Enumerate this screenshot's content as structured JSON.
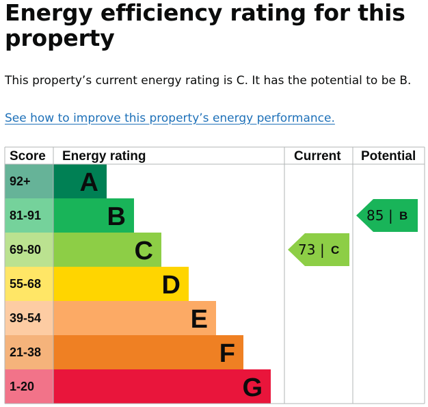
{
  "title": "Energy efficiency rating for this property",
  "summary": "This property’s current energy rating is C. It has the potential to be B.",
  "link": "See how to improve this property’s energy performance.",
  "table": {
    "headers": {
      "score": "Score",
      "rating": "Energy rating",
      "current": "Current",
      "potential": "Potential"
    },
    "bands": [
      {
        "score": "92+",
        "letter": "A",
        "color": "#008054",
        "score_bg": "#66b398"
      },
      {
        "score": "81-91",
        "letter": "B",
        "color": "#19b459",
        "score_bg": "#75d29b"
      },
      {
        "score": "69-80",
        "letter": "C",
        "color": "#8dce46",
        "score_bg": "#bbe290"
      },
      {
        "score": "55-68",
        "letter": "D",
        "color": "#ffd500",
        "score_bg": "#ffe666"
      },
      {
        "score": "39-54",
        "letter": "E",
        "color": "#fcaa65",
        "score_bg": "#fdcca3"
      },
      {
        "score": "21-38",
        "letter": "F",
        "color": "#ef8023",
        "score_bg": "#f5b37b"
      },
      {
        "score": "1-20",
        "letter": "G",
        "color": "#e9153b",
        "score_bg": "#f27389"
      }
    ],
    "current": {
      "value": "73",
      "separator": "|",
      "letter": "C",
      "band_index": 2,
      "color": "#8dce46"
    },
    "potential": {
      "value": "85",
      "separator": "|",
      "letter": "B",
      "band_index": 1,
      "color": "#19b459"
    },
    "border_color": "#b1b4b6"
  }
}
